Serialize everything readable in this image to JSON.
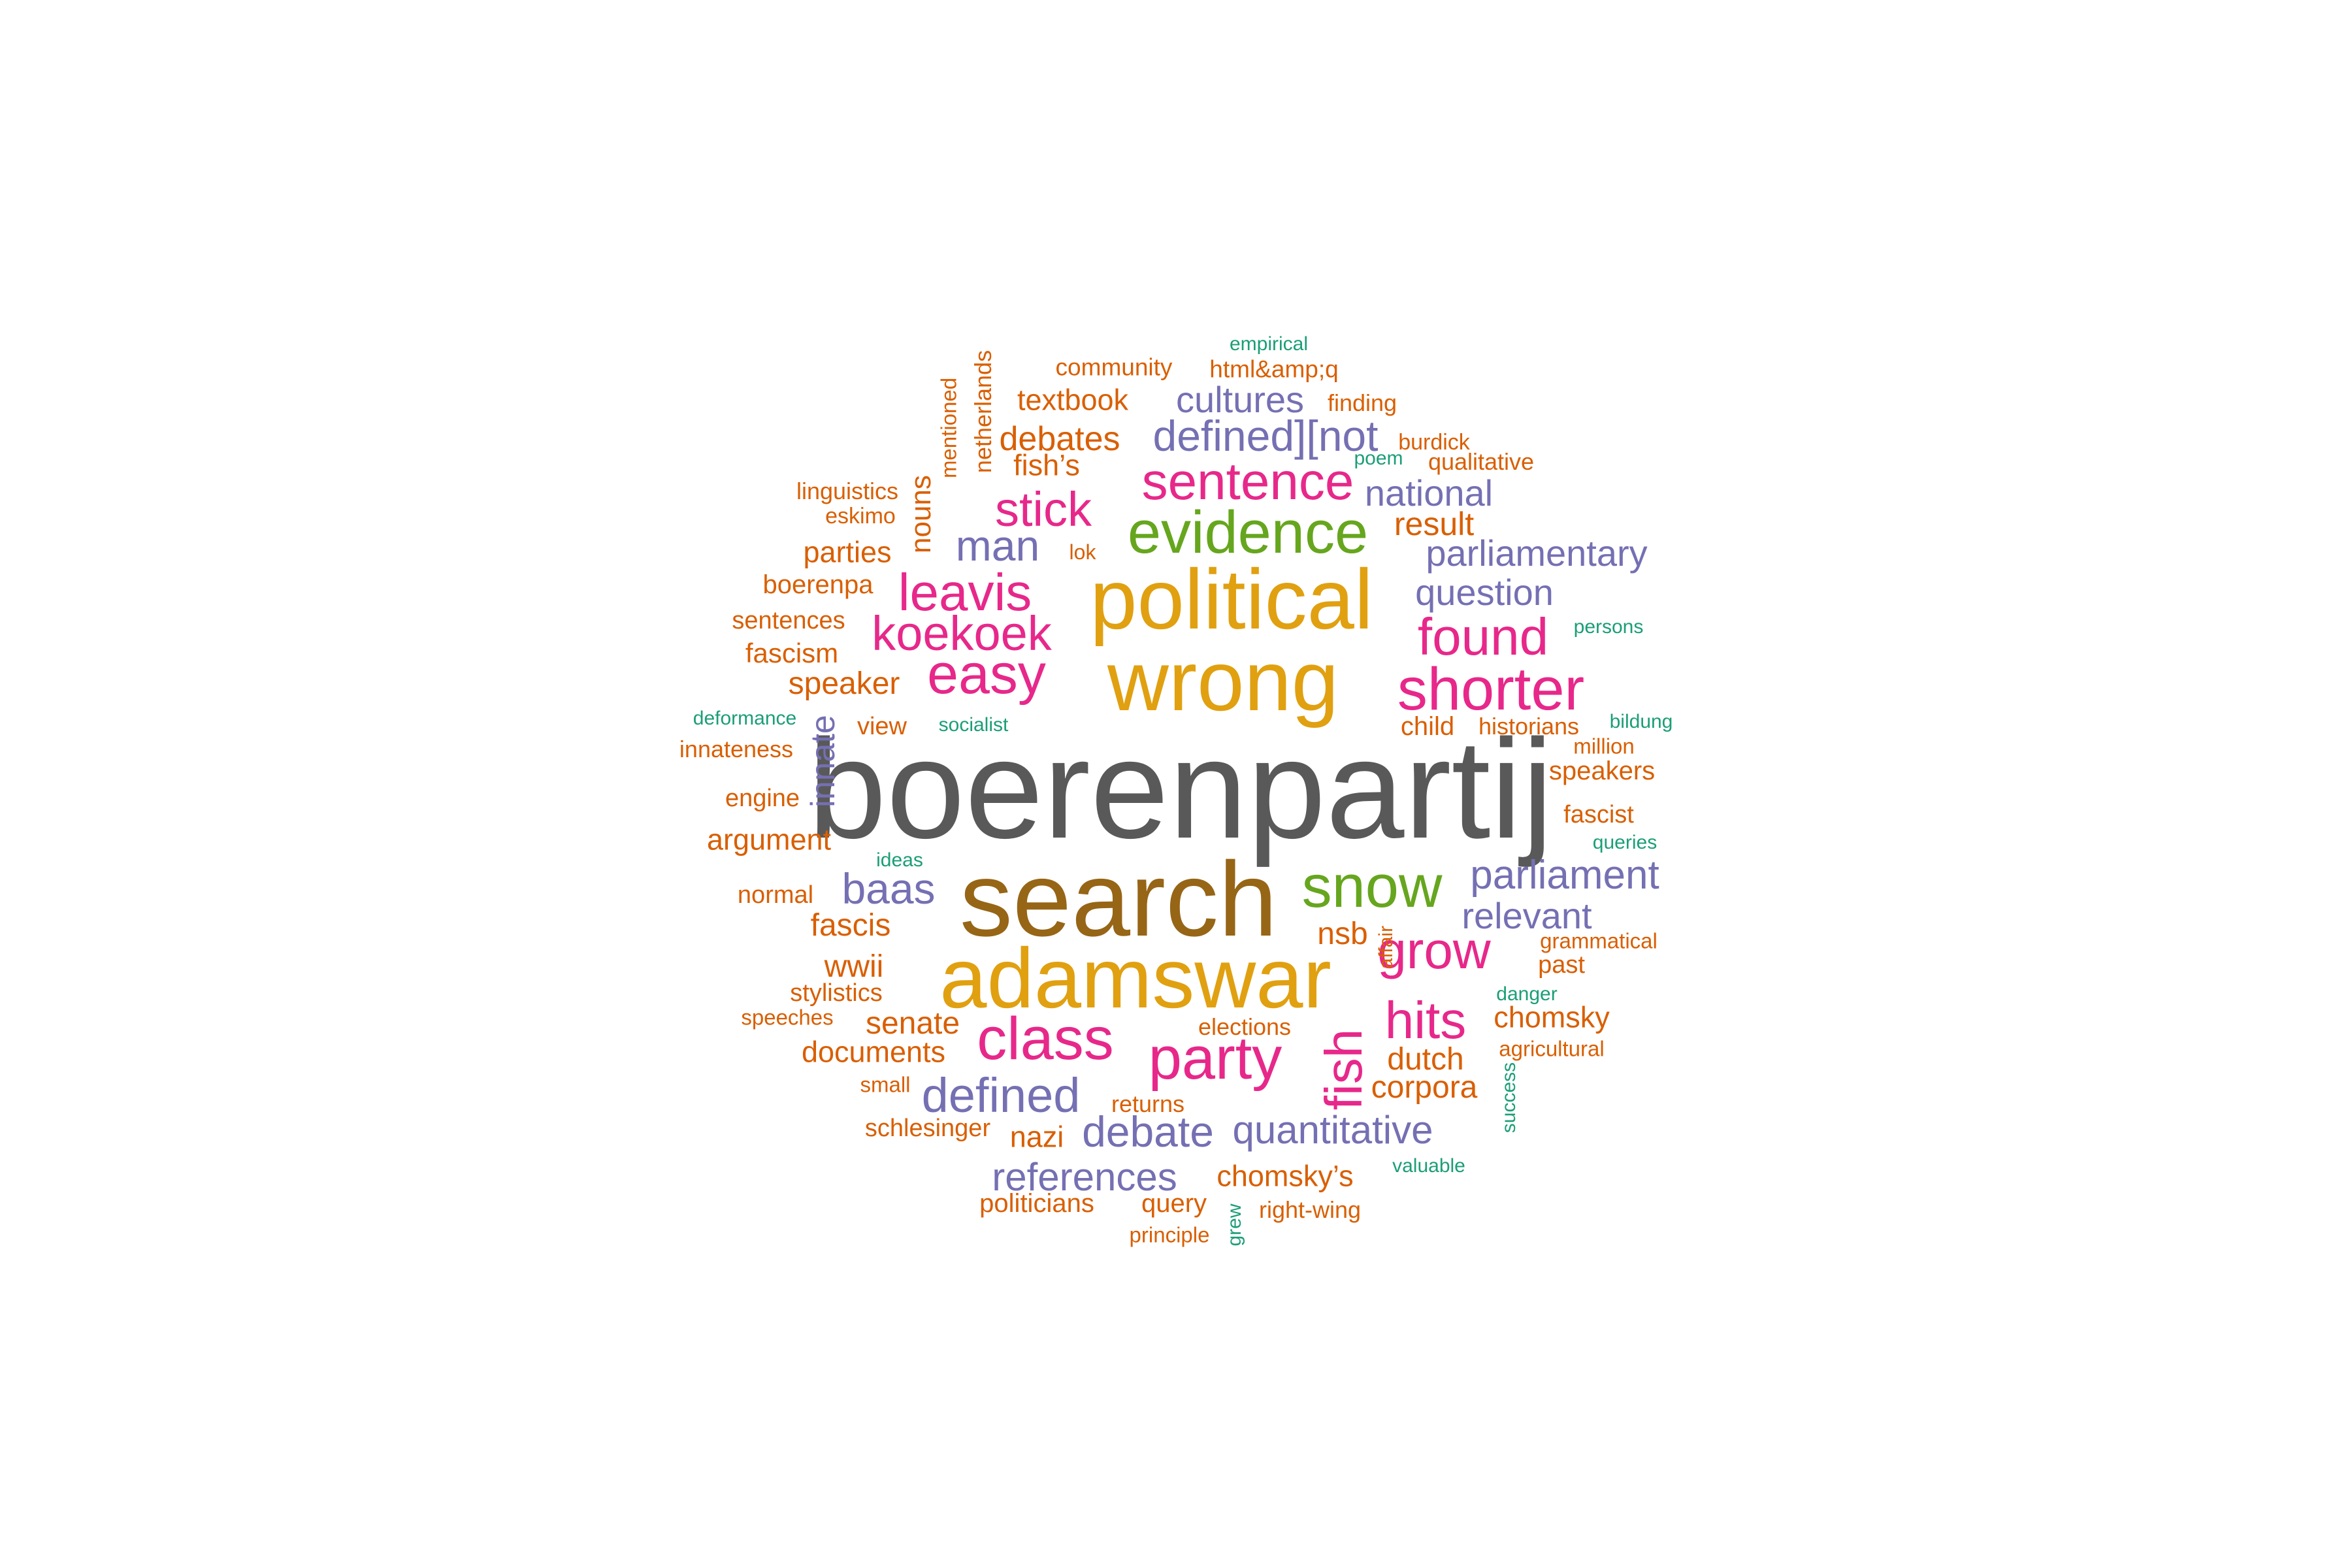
{
  "words": [
    {
      "text": "boerenpartij",
      "color": "c1"
    },
    {
      "text": "search",
      "color": "c3"
    },
    {
      "text": "political",
      "color": "c2"
    },
    {
      "text": "wrong",
      "color": "c2"
    },
    {
      "text": "adamswar",
      "color": "c2"
    },
    {
      "text": "evidence",
      "color": "c5"
    },
    {
      "text": "snow",
      "color": "c5"
    },
    {
      "text": "sentence",
      "color": "c4"
    },
    {
      "text": "leavis",
      "color": "c4"
    },
    {
      "text": "shorter",
      "color": "c4"
    },
    {
      "text": "easy",
      "color": "c4"
    },
    {
      "text": "koekoek",
      "color": "c4"
    },
    {
      "text": "stick",
      "color": "c4"
    },
    {
      "text": "found",
      "color": "c4"
    },
    {
      "text": "class",
      "color": "c4"
    },
    {
      "text": "party",
      "color": "c4"
    },
    {
      "text": "hits",
      "color": "c4"
    },
    {
      "text": "grow",
      "color": "c4"
    },
    {
      "text": "fish",
      "color": "c4"
    },
    {
      "text": "man",
      "color": "c6"
    },
    {
      "text": "defined][not",
      "color": "c6"
    },
    {
      "text": "cultures",
      "color": "c6"
    },
    {
      "text": "national",
      "color": "c6"
    },
    {
      "text": "parliamentary",
      "color": "c6"
    },
    {
      "text": "question",
      "color": "c6"
    },
    {
      "text": "parliament",
      "color": "c6"
    },
    {
      "text": "relevant",
      "color": "c6"
    },
    {
      "text": "baas",
      "color": "c6"
    },
    {
      "text": "defined",
      "color": "c6"
    },
    {
      "text": "debate",
      "color": "c6"
    },
    {
      "text": "quantitative",
      "color": "c6"
    },
    {
      "text": "references",
      "color": "c6"
    },
    {
      "text": "innate",
      "color": "c6"
    },
    {
      "text": "community",
      "color": "c7"
    },
    {
      "text": "html&amp;q",
      "color": "c7"
    },
    {
      "text": "textbook",
      "color": "c7"
    },
    {
      "text": "finding",
      "color": "c7"
    },
    {
      "text": "debates",
      "color": "c7"
    },
    {
      "text": "burdick",
      "color": "c7"
    },
    {
      "text": "fish’s",
      "color": "c7"
    },
    {
      "text": "qualitative",
      "color": "c7"
    },
    {
      "text": "linguistics",
      "color": "c7"
    },
    {
      "text": "eskimo",
      "color": "c7"
    },
    {
      "text": "result",
      "color": "c7"
    },
    {
      "text": "parties",
      "color": "c7"
    },
    {
      "text": "lok",
      "color": "c7"
    },
    {
      "text": "boerenpa",
      "color": "c7"
    },
    {
      "text": "sentences",
      "color": "c7"
    },
    {
      "text": "fascism",
      "color": "c7"
    },
    {
      "text": "speaker",
      "color": "c7"
    },
    {
      "text": "view",
      "color": "c7"
    },
    {
      "text": "child",
      "color": "c7"
    },
    {
      "text": "historians",
      "color": "c7"
    },
    {
      "text": "innateness",
      "color": "c7"
    },
    {
      "text": "million",
      "color": "c7"
    },
    {
      "text": "speakers",
      "color": "c7"
    },
    {
      "text": "engine",
      "color": "c7"
    },
    {
      "text": "fascist",
      "color": "c7"
    },
    {
      "text": "argument",
      "color": "c7"
    },
    {
      "text": "normal",
      "color": "c7"
    },
    {
      "text": "fascis",
      "color": "c7"
    },
    {
      "text": "nsb",
      "color": "c7"
    },
    {
      "text": "wwii",
      "color": "c7"
    },
    {
      "text": "grammatical",
      "color": "c7"
    },
    {
      "text": "past",
      "color": "c7"
    },
    {
      "text": "stylistics",
      "color": "c7"
    },
    {
      "text": "speeches",
      "color": "c7"
    },
    {
      "text": "senate",
      "color": "c7"
    },
    {
      "text": "chomsky",
      "color": "c7"
    },
    {
      "text": "elections",
      "color": "c7"
    },
    {
      "text": "dutch",
      "color": "c7"
    },
    {
      "text": "documents",
      "color": "c7"
    },
    {
      "text": "agricultural",
      "color": "c7"
    },
    {
      "text": "small",
      "color": "c7"
    },
    {
      "text": "corpora",
      "color": "c7"
    },
    {
      "text": "returns",
      "color": "c7"
    },
    {
      "text": "schlesinger",
      "color": "c7"
    },
    {
      "text": "nazi",
      "color": "c7"
    },
    {
      "text": "chomsky’s",
      "color": "c7"
    },
    {
      "text": "politicians",
      "color": "c7"
    },
    {
      "text": "query",
      "color": "c7"
    },
    {
      "text": "right-wing",
      "color": "c7"
    },
    {
      "text": "principle",
      "color": "c7"
    },
    {
      "text": "netherlands",
      "color": "c7"
    },
    {
      "text": "mentioned",
      "color": "c7"
    },
    {
      "text": "nouns",
      "color": "c7"
    },
    {
      "text": "affair",
      "color": "c7"
    },
    {
      "text": "empirical",
      "color": "c8"
    },
    {
      "text": "poem",
      "color": "c8"
    },
    {
      "text": "persons",
      "color": "c8"
    },
    {
      "text": "deformance",
      "color": "c8"
    },
    {
      "text": "socialist",
      "color": "c8"
    },
    {
      "text": "bildung",
      "color": "c8"
    },
    {
      "text": "queries",
      "color": "c8"
    },
    {
      "text": "ideas",
      "color": "c8"
    },
    {
      "text": "danger",
      "color": "c8"
    },
    {
      "text": "valuable",
      "color": "c8"
    },
    {
      "text": "success",
      "color": "c8"
    },
    {
      "text": "grew",
      "color": "c8"
    }
  ]
}
